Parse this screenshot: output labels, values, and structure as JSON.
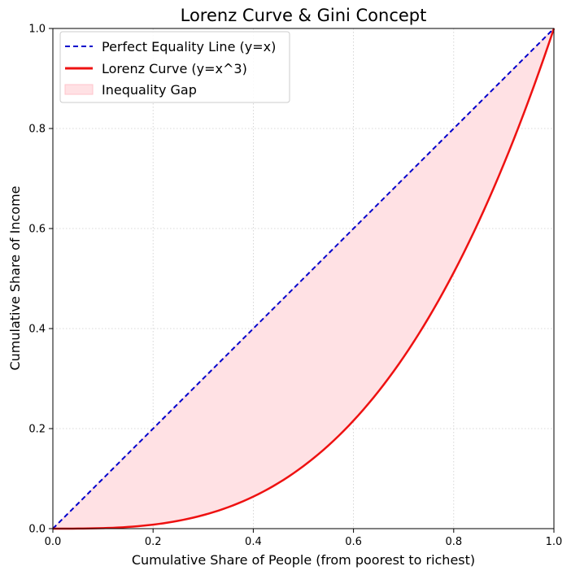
{
  "chart_data": {
    "type": "line",
    "title": "Lorenz Curve & Gini Concept",
    "xlabel": "Cumulative Share of People (from poorest to richest)",
    "ylabel": "Cumulative Share of Income",
    "xlim": [
      0.0,
      1.0
    ],
    "ylim": [
      0.0,
      1.0
    ],
    "xticks": [
      0.0,
      0.2,
      0.4,
      0.6,
      0.8,
      1.0
    ],
    "yticks": [
      0.0,
      0.2,
      0.4,
      0.6,
      0.8,
      1.0
    ],
    "xtick_labels": [
      "0.0",
      "0.2",
      "0.4",
      "0.6",
      "0.8",
      "1.0"
    ],
    "ytick_labels": [
      "0.0",
      "0.2",
      "0.4",
      "0.6",
      "0.8",
      "1.0"
    ],
    "grid": true,
    "legend_position": "upper-left",
    "series": [
      {
        "name": "Perfect Equality Line (y=x)",
        "style": "dashed",
        "color": "#0000cc",
        "x": [
          0.0,
          1.0
        ],
        "y": [
          0.0,
          1.0
        ]
      },
      {
        "name": "Lorenz Curve (y=x^3)",
        "style": "solid",
        "color": "#ee1111",
        "x": [
          0.0,
          0.1,
          0.2,
          0.3,
          0.4,
          0.5,
          0.6,
          0.7,
          0.8,
          0.9,
          1.0
        ],
        "y": [
          0.0,
          0.001,
          0.008,
          0.027,
          0.064,
          0.125,
          0.216,
          0.343,
          0.512,
          0.729,
          1.0
        ]
      }
    ],
    "fill_between": {
      "name": "Inequality Gap",
      "color": "#ffe1e4",
      "edge_color": "#ffc4cb"
    }
  }
}
